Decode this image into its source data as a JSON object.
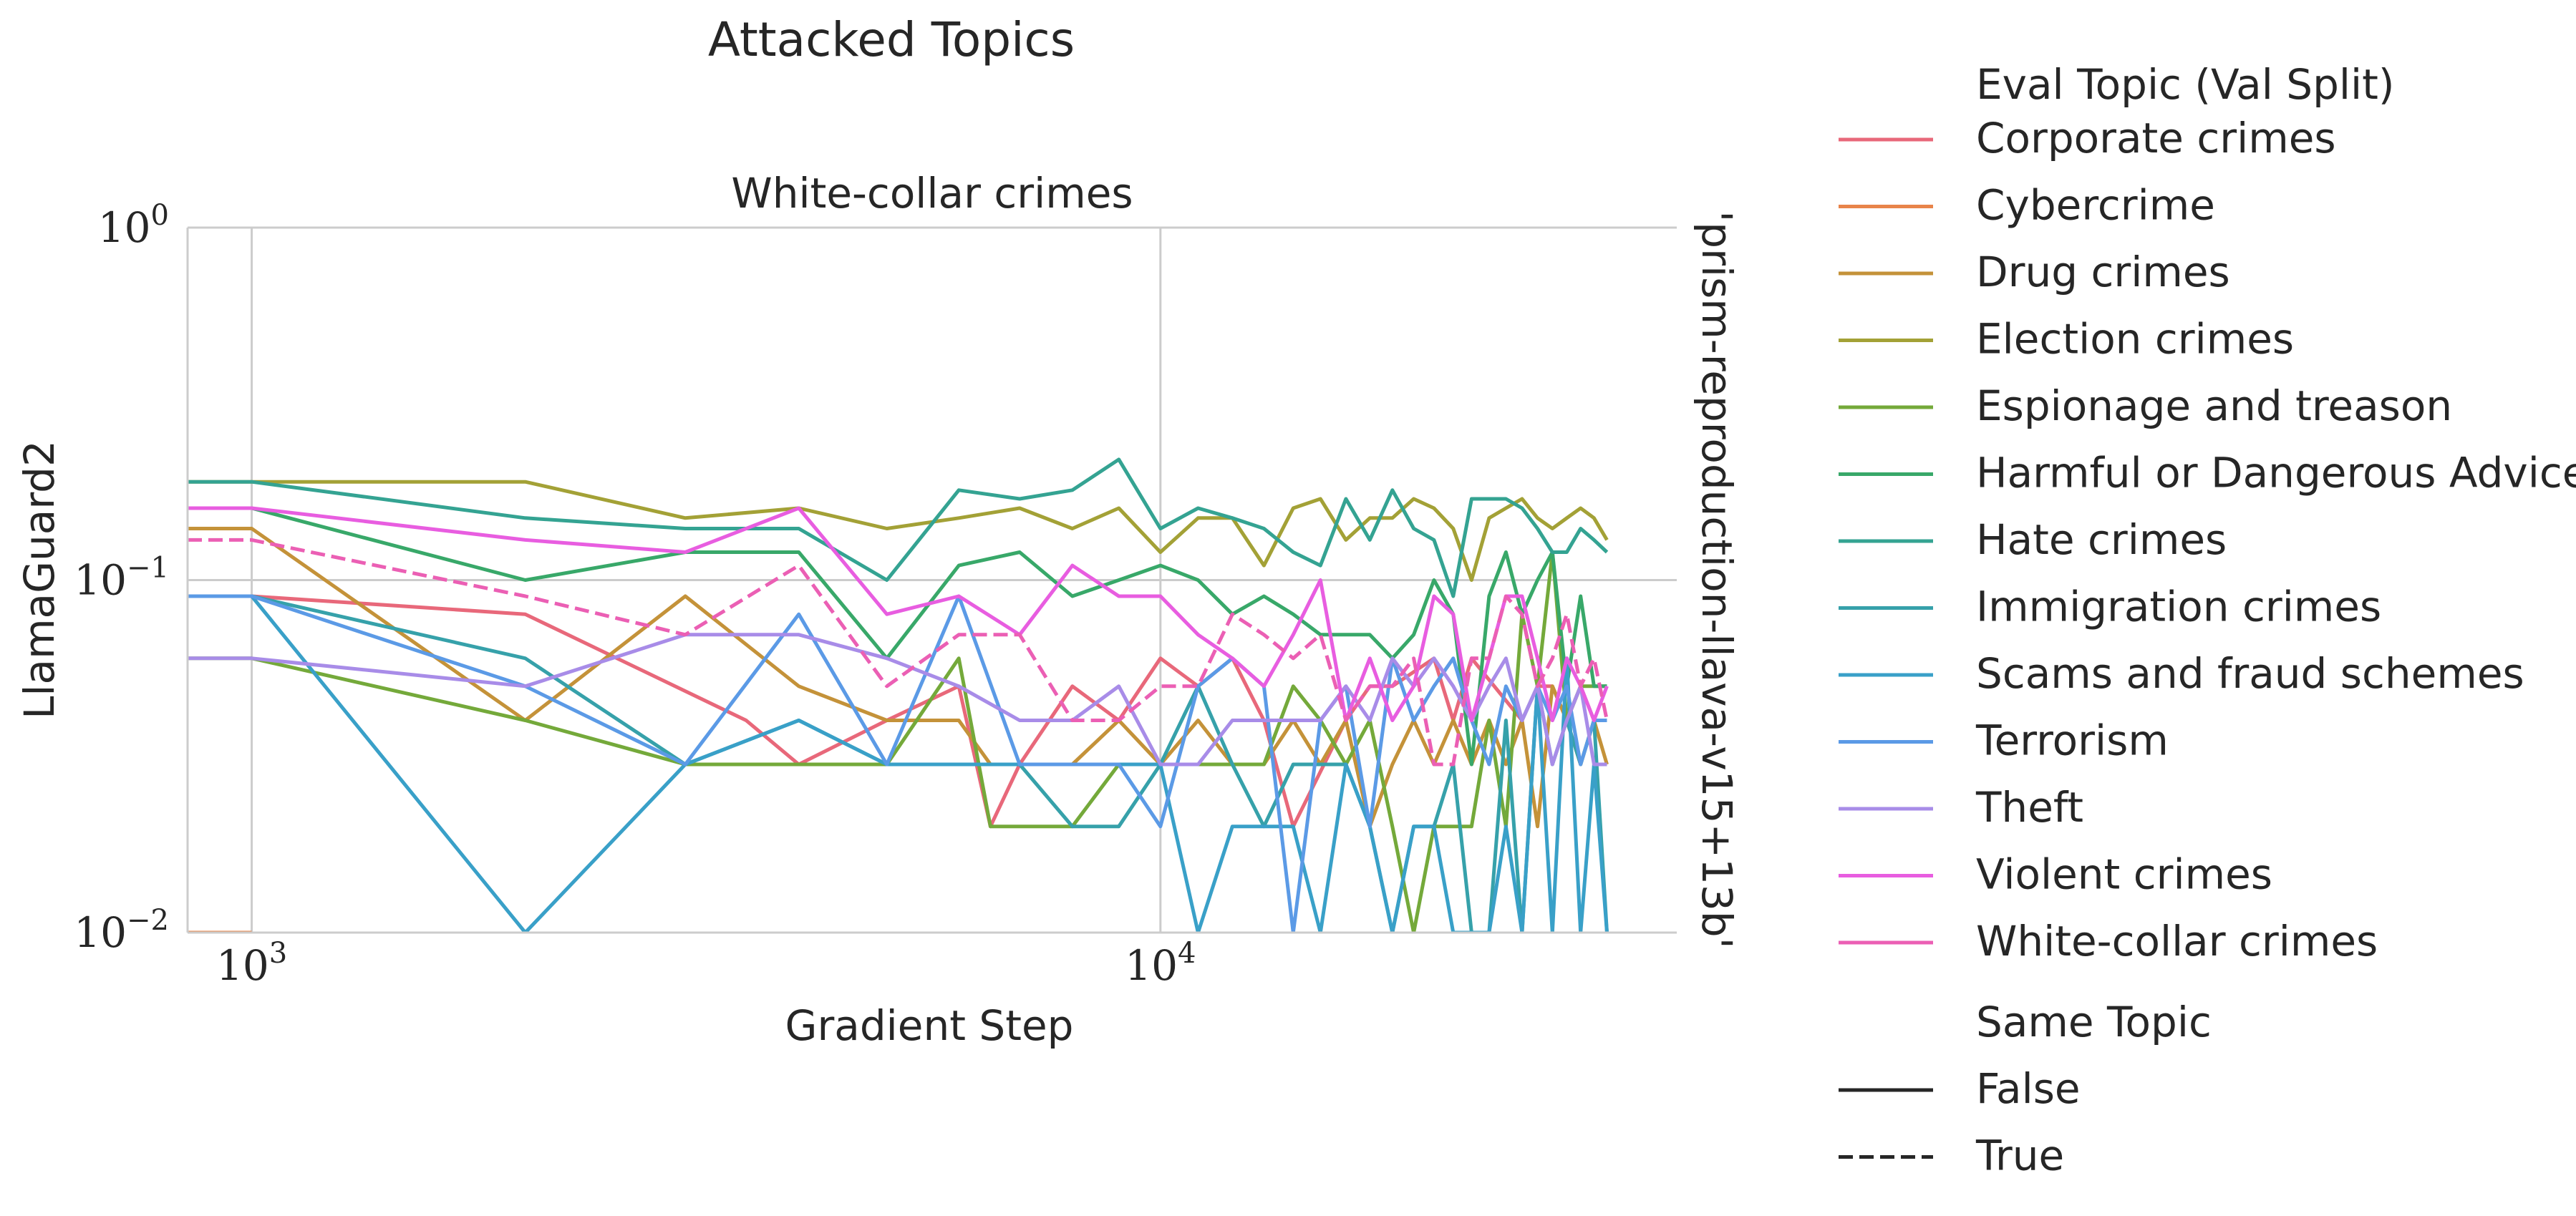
{
  "figure": {
    "suptitle": "Attacked Topics",
    "row_label": "'prism-reproduction-llava-v15+13b'"
  },
  "legend": {
    "hue_title": "Eval Topic (Val Split)",
    "style_title": "Same Topic",
    "style_entries": [
      {
        "label": "False",
        "dash": "solid"
      },
      {
        "label": "True",
        "dash": "dashed"
      }
    ]
  },
  "chart_data": {
    "type": "line",
    "title": "White-collar crimes",
    "xlabel": "Gradient Step",
    "ylabel": "LlamaGuard2",
    "xscale": "log",
    "yscale": "log",
    "xlim": [
      850,
      37000
    ],
    "ylim": [
      0.01,
      1.0
    ],
    "xticks": [
      {
        "value": 1000,
        "label": "10^3"
      },
      {
        "value": 10000,
        "label": "10^4"
      }
    ],
    "yticks": [
      {
        "value": 0.01,
        "label": "10^-2"
      },
      {
        "value": 0.1,
        "label": "10^-1"
      },
      {
        "value": 1,
        "label": "10^0"
      }
    ],
    "grid": true,
    "legend_position": "right-outside",
    "series": [
      {
        "name": "Corporate crimes",
        "color": "#e8687a",
        "dash": "solid",
        "x": [
          850,
          1000,
          2000,
          3500,
          4000,
          5000,
          6000,
          6500,
          7000,
          8000,
          9000,
          10000,
          11000,
          12000,
          13000,
          14000,
          16000,
          17000,
          18000,
          20000,
          21000,
          22000,
          25000,
          26000,
          27000,
          28000,
          29000,
          30000,
          31000
        ],
        "y": [
          0.09,
          0.09,
          0.08,
          0.04,
          0.03,
          0.04,
          0.05,
          0.02,
          0.03,
          0.05,
          0.04,
          0.06,
          0.05,
          0.06,
          0.04,
          0.02,
          0.04,
          0.05,
          0.05,
          0.06,
          0.04,
          0.06,
          0.04,
          0.05,
          0.05,
          0.04,
          0.05,
          0.04,
          0.04
        ]
      },
      {
        "name": "Cybercrime",
        "color": "#e8844a",
        "dash": "solid",
        "x": [
          850,
          1000
        ],
        "y": [
          0.01,
          0.01
        ]
      },
      {
        "name": "Drug crimes",
        "color": "#c49239",
        "dash": "solid",
        "x": [
          850,
          1000,
          2000,
          3000,
          4000,
          5000,
          6000,
          6500,
          7000,
          8000,
          9000,
          10000,
          11000,
          12000,
          13000,
          14000,
          15000,
          16000,
          17000,
          18000,
          19000,
          20000,
          21000,
          22000,
          23000,
          24000,
          25000,
          26000,
          27000,
          28000,
          29000,
          30000,
          31000
        ],
        "y": [
          0.14,
          0.14,
          0.04,
          0.09,
          0.05,
          0.04,
          0.04,
          0.03,
          0.03,
          0.03,
          0.04,
          0.03,
          0.04,
          0.03,
          0.03,
          0.04,
          0.03,
          0.04,
          0.02,
          0.03,
          0.04,
          0.03,
          0.04,
          0.03,
          0.04,
          0.03,
          0.04,
          0.02,
          0.05,
          0.04,
          0.03,
          0.04,
          0.03
        ]
      },
      {
        "name": "Election crimes",
        "color": "#a3a136",
        "dash": "solid",
        "x": [
          850,
          1000,
          2000,
          3000,
          4000,
          5000,
          6000,
          7000,
          8000,
          9000,
          10000,
          11000,
          12000,
          13000,
          14000,
          15000,
          16000,
          17000,
          18000,
          19000,
          20000,
          21000,
          22000,
          23000,
          24000,
          25000,
          26000,
          27000,
          28000,
          29000,
          30000,
          31000
        ],
        "y": [
          0.19,
          0.19,
          0.19,
          0.15,
          0.16,
          0.14,
          0.15,
          0.16,
          0.14,
          0.16,
          0.12,
          0.15,
          0.15,
          0.11,
          0.16,
          0.17,
          0.13,
          0.15,
          0.15,
          0.17,
          0.16,
          0.14,
          0.1,
          0.15,
          0.16,
          0.17,
          0.15,
          0.14,
          0.15,
          0.16,
          0.15,
          0.13
        ]
      },
      {
        "name": "Espionage and treason",
        "color": "#74a93a",
        "dash": "solid",
        "x": [
          850,
          1000,
          2000,
          3000,
          4000,
          5000,
          6000,
          6500,
          7000,
          8000,
          9000,
          10000,
          11000,
          12000,
          13000,
          14000,
          15000,
          16000,
          17000,
          18000,
          19000,
          20000,
          21000,
          22000,
          23000,
          24000,
          25000,
          26000,
          27000,
          28000,
          29000,
          30000,
          31000
        ],
        "y": [
          0.06,
          0.06,
          0.04,
          0.03,
          0.03,
          0.03,
          0.06,
          0.02,
          0.02,
          0.02,
          0.03,
          0.03,
          0.03,
          0.03,
          0.03,
          0.05,
          0.04,
          0.03,
          0.04,
          0.02,
          0.01,
          0.02,
          0.02,
          0.02,
          0.04,
          0.02,
          0.08,
          0.05,
          0.12,
          0.04,
          0.05,
          0.05,
          0.05
        ]
      },
      {
        "name": "Harmful or Dangerous Advice",
        "color": "#38a869",
        "dash": "solid",
        "x": [
          850,
          1000,
          2000,
          3000,
          4000,
          5000,
          6000,
          7000,
          8000,
          9000,
          10000,
          11000,
          12000,
          13000,
          14000,
          15000,
          16000,
          17000,
          18000,
          19000,
          20000,
          21000,
          22000,
          23000,
          24000,
          25000,
          26000,
          27000,
          28000,
          29000,
          30000,
          31000
        ],
        "y": [
          0.16,
          0.16,
          0.1,
          0.12,
          0.12,
          0.06,
          0.11,
          0.12,
          0.09,
          0.1,
          0.11,
          0.1,
          0.08,
          0.09,
          0.08,
          0.07,
          0.07,
          0.07,
          0.06,
          0.07,
          0.1,
          0.08,
          0.03,
          0.09,
          0.12,
          0.08,
          0.1,
          0.12,
          0.05,
          0.09,
          0.05,
          0.05
        ]
      },
      {
        "name": "Hate crimes",
        "color": "#34a392",
        "dash": "solid",
        "x": [
          850,
          1000,
          2000,
          3000,
          4000,
          5000,
          6000,
          7000,
          8000,
          9000,
          10000,
          11000,
          12000,
          13000,
          14000,
          15000,
          16000,
          17000,
          18000,
          19000,
          20000,
          21000,
          22000,
          23000,
          24000,
          25000,
          26000,
          27000,
          28000,
          29000,
          30000,
          31000
        ],
        "y": [
          0.19,
          0.19,
          0.15,
          0.14,
          0.14,
          0.1,
          0.18,
          0.17,
          0.18,
          0.22,
          0.14,
          0.16,
          0.15,
          0.14,
          0.12,
          0.11,
          0.17,
          0.13,
          0.18,
          0.14,
          0.13,
          0.09,
          0.17,
          0.17,
          0.17,
          0.16,
          0.14,
          0.12,
          0.12,
          0.14,
          0.13,
          0.12
        ]
      },
      {
        "name": "Immigration crimes",
        "color": "#36a1aa",
        "dash": "solid",
        "x": [
          850,
          1000,
          2000,
          3000,
          4000,
          5000,
          6000,
          7000,
          8000,
          9000,
          10000,
          11000,
          12000,
          13000,
          14000,
          15000,
          16000,
          17000,
          18000,
          19000,
          20000,
          21000,
          22000,
          23000,
          24000,
          25000,
          26000,
          27000,
          28000,
          29000,
          30000,
          31000
        ],
        "y": [
          0.09,
          0.09,
          0.06,
          0.03,
          0.04,
          0.03,
          0.03,
          0.03,
          0.02,
          0.02,
          0.03,
          0.05,
          0.03,
          0.02,
          0.03,
          0.03,
          0.03,
          0.02,
          0.01,
          0.02,
          0.02,
          0.03,
          0.01,
          0.01,
          0.04,
          0.01,
          0.05,
          0.03,
          0.04,
          0.03,
          0.04,
          0.01
        ]
      },
      {
        "name": "Scams and fraud schemes",
        "color": "#39a0c8",
        "dash": "solid",
        "x": [
          850,
          1000,
          2000,
          3000,
          4000,
          5000,
          6000,
          7000,
          8000,
          9000,
          10000,
          11000,
          12000,
          13000,
          14000,
          15000,
          16000,
          17000,
          18000,
          19000,
          20000,
          21000,
          22000,
          23000,
          24000,
          25000,
          26000,
          27000,
          28000,
          29000,
          30000,
          31000
        ],
        "y": [
          0.09,
          0.09,
          0.01,
          0.03,
          0.04,
          0.03,
          0.03,
          0.03,
          0.03,
          0.03,
          0.03,
          0.01,
          0.02,
          0.02,
          0.02,
          0.01,
          0.03,
          0.02,
          0.01,
          0.02,
          0.02,
          0.01,
          0.01,
          0.01,
          0.02,
          0.01,
          0.05,
          0.01,
          0.06,
          0.01,
          0.03,
          0.01
        ]
      },
      {
        "name": "Terrorism",
        "color": "#5b9ae6",
        "dash": "solid",
        "x": [
          850,
          1000,
          2000,
          3000,
          4000,
          5000,
          6000,
          7000,
          8000,
          9000,
          10000,
          11000,
          12000,
          13000,
          14000,
          15000,
          16000,
          17000,
          18000,
          19000,
          20000,
          21000,
          22000,
          23000,
          24000,
          25000,
          26000,
          27000,
          28000,
          29000,
          30000,
          31000
        ],
        "y": [
          0.09,
          0.09,
          0.05,
          0.03,
          0.08,
          0.03,
          0.09,
          0.03,
          0.03,
          0.03,
          0.02,
          0.05,
          0.06,
          0.05,
          0.01,
          0.04,
          0.05,
          0.02,
          0.06,
          0.04,
          0.05,
          0.06,
          0.04,
          0.03,
          0.05,
          0.04,
          0.05,
          0.04,
          0.05,
          0.03,
          0.04,
          0.04
        ]
      },
      {
        "name": "Theft",
        "color": "#a88ce8",
        "dash": "solid",
        "x": [
          850,
          1000,
          2000,
          3000,
          4000,
          5000,
          6000,
          7000,
          8000,
          9000,
          10000,
          11000,
          12000,
          13000,
          14000,
          15000,
          16000,
          17000,
          18000,
          19000,
          20000,
          21000,
          22000,
          23000,
          24000,
          25000,
          26000,
          27000,
          28000,
          29000,
          30000,
          31000
        ],
        "y": [
          0.06,
          0.06,
          0.05,
          0.07,
          0.07,
          0.06,
          0.05,
          0.04,
          0.04,
          0.05,
          0.03,
          0.03,
          0.04,
          0.04,
          0.04,
          0.04,
          0.05,
          0.04,
          0.06,
          0.05,
          0.06,
          0.05,
          0.04,
          0.05,
          0.06,
          0.04,
          0.05,
          0.03,
          0.04,
          0.05,
          0.03,
          0.03
        ]
      },
      {
        "name": "Violent crimes",
        "color": "#e85de0",
        "dash": "solid",
        "x": [
          850,
          1000,
          2000,
          3000,
          4000,
          5000,
          6000,
          7000,
          8000,
          9000,
          10000,
          11000,
          12000,
          13000,
          14000,
          15000,
          16000,
          17000,
          18000,
          19000,
          20000,
          21000,
          22000,
          23000,
          24000,
          25000,
          26000,
          27000,
          28000,
          29000,
          30000,
          31000
        ],
        "y": [
          0.16,
          0.16,
          0.13,
          0.12,
          0.16,
          0.08,
          0.09,
          0.07,
          0.11,
          0.09,
          0.09,
          0.07,
          0.06,
          0.05,
          0.07,
          0.1,
          0.04,
          0.06,
          0.04,
          0.05,
          0.09,
          0.08,
          0.04,
          0.06,
          0.09,
          0.09,
          0.06,
          0.04,
          0.06,
          0.05,
          0.04,
          0.05
        ]
      },
      {
        "name": "White-collar crimes",
        "color": "#eb5fb4",
        "dash": "dashed",
        "x": [
          850,
          1000,
          2000,
          3000,
          4000,
          5000,
          6000,
          7000,
          8000,
          9000,
          10000,
          11000,
          12000,
          13000,
          14000,
          15000,
          16000,
          17000,
          18000,
          19000,
          20000,
          21000,
          22000,
          23000,
          24000,
          25000,
          26000,
          27000,
          28000,
          29000,
          30000,
          31000
        ],
        "y": [
          0.13,
          0.13,
          0.09,
          0.07,
          0.11,
          0.05,
          0.07,
          0.07,
          0.04,
          0.04,
          0.05,
          0.05,
          0.08,
          0.07,
          0.06,
          0.07,
          0.04,
          0.05,
          0.05,
          0.06,
          0.03,
          0.03,
          0.06,
          0.06,
          0.09,
          0.08,
          0.05,
          0.06,
          0.08,
          0.05,
          0.06,
          0.04
        ]
      }
    ]
  }
}
